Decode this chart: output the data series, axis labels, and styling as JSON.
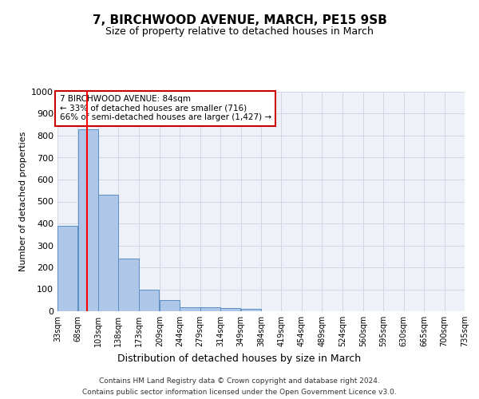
{
  "title1": "7, BIRCHWOOD AVENUE, MARCH, PE15 9SB",
  "title2": "Size of property relative to detached houses in March",
  "xlabel": "Distribution of detached houses by size in March",
  "ylabel": "Number of detached properties",
  "footer1": "Contains HM Land Registry data © Crown copyright and database right 2024.",
  "footer2": "Contains public sector information licensed under the Open Government Licence v3.0.",
  "bar_edges": [
    33,
    68,
    103,
    138,
    173,
    209,
    244,
    279,
    314,
    349,
    384,
    419,
    454,
    489,
    524,
    560,
    595,
    630,
    665,
    700,
    735
  ],
  "bar_values": [
    390,
    830,
    530,
    240,
    97,
    52,
    20,
    18,
    15,
    10,
    0,
    0,
    0,
    0,
    0,
    0,
    0,
    0,
    0,
    0
  ],
  "bar_color": "#aec6e8",
  "bar_edge_color": "#5a8fc4",
  "red_line_x": 84,
  "annotation_text": "7 BIRCHWOOD AVENUE: 84sqm\n← 33% of detached houses are smaller (716)\n66% of semi-detached houses are larger (1,427) →",
  "annotation_box_color": "#ffffff",
  "annotation_box_edge": "#cc0000",
  "grid_color": "#d0d8e8",
  "bg_color": "#eef2f8",
  "ylim": [
    0,
    1000
  ],
  "yticks": [
    0,
    100,
    200,
    300,
    400,
    500,
    600,
    700,
    800,
    900,
    1000
  ]
}
